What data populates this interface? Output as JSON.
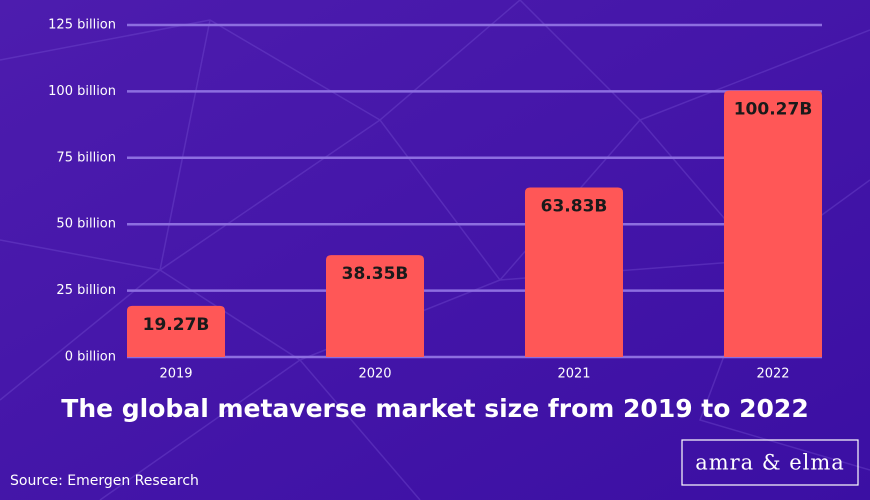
{
  "chart_data": {
    "type": "bar",
    "title": "The global metaverse market size from 2019 to 2022",
    "source": "Source: Emergen Research",
    "logo": "amra & elma",
    "categories": [
      "2019",
      "2020",
      "2021",
      "2022"
    ],
    "values": [
      19.27,
      38.35,
      63.83,
      100.27
    ],
    "value_labels": [
      "19.27B",
      "38.35B",
      "63.83B",
      "100.27B"
    ],
    "color": "#ff5757",
    "ylim": [
      0,
      125
    ],
    "yticks": [
      {
        "value": 0,
        "label": "0 billion"
      },
      {
        "value": 25,
        "label": "25 billion"
      },
      {
        "value": 50,
        "label": "50 billion"
      },
      {
        "value": 75,
        "label": "75 billion"
      },
      {
        "value": 100,
        "label": "100 billion"
      },
      {
        "value": 125,
        "label": "125 billion"
      }
    ],
    "grid": true
  }
}
